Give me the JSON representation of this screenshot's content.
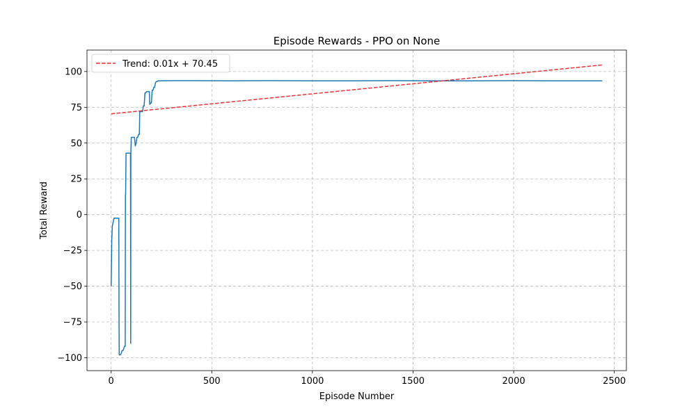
{
  "chart_data": {
    "type": "line",
    "title": "Episode Rewards - PPO on None",
    "xlabel": "Episode Number",
    "ylabel": "Total Reward",
    "xlim": [
      -120,
      2560
    ],
    "ylim": [
      -109,
      115
    ],
    "x_ticks": [
      0,
      500,
      1000,
      1500,
      2000,
      2500
    ],
    "y_ticks": [
      -100,
      -75,
      -50,
      -25,
      0,
      25,
      50,
      75,
      100
    ],
    "grid": true,
    "legend_placement": "top-left",
    "series": [
      {
        "name": "",
        "kind": "line",
        "color": "#1f77b4",
        "x": [
          0,
          3,
          6,
          10,
          14,
          18,
          22,
          26,
          30,
          34,
          38,
          39,
          40,
          46,
          50,
          54,
          58,
          62,
          66,
          70,
          71,
          72,
          74,
          76,
          78,
          82,
          86,
          90,
          94,
          96,
          97,
          98,
          100,
          104,
          108,
          112,
          116,
          120,
          124,
          128,
          132,
          136,
          140,
          142,
          144,
          148,
          152,
          156,
          160,
          164,
          168,
          172,
          176,
          180,
          184,
          188,
          190,
          192,
          196,
          200,
          204,
          208,
          212,
          216,
          220,
          224,
          228,
          232,
          236,
          240,
          250,
          300,
          400,
          600,
          800,
          1000,
          1200,
          1400,
          1600,
          1800,
          2000,
          2200,
          2400,
          2440
        ],
        "y": [
          -50,
          -18,
          -8,
          -5,
          -2.5,
          -2.5,
          -2.5,
          -2.5,
          -2.5,
          -2.5,
          -2.5,
          -70,
          -98,
          -98,
          -97,
          -95,
          -95,
          -94,
          -92,
          -92,
          14,
          14,
          43,
          43,
          43,
          43,
          43,
          43,
          43,
          43,
          -90,
          43,
          54,
          54,
          54,
          54,
          54,
          48,
          50,
          54,
          54,
          56,
          56,
          72,
          72,
          72,
          72,
          72,
          76,
          76,
          85,
          85,
          86,
          86,
          86,
          86,
          86,
          77,
          78,
          78,
          87,
          87,
          89,
          89,
          92,
          93,
          93,
          93.5,
          93.5,
          93.5,
          93.5,
          93.6,
          93.6,
          93.5,
          93.6,
          93.5,
          93.5,
          93.6,
          93.5,
          93.5,
          93.6,
          93.5,
          93.5,
          93.5
        ]
      },
      {
        "name": "Trend: 0.01x + 70.45",
        "kind": "trend",
        "color": "#e8282b",
        "x": [
          0,
          2440
        ],
        "y": [
          70.45,
          104.6
        ]
      }
    ]
  }
}
